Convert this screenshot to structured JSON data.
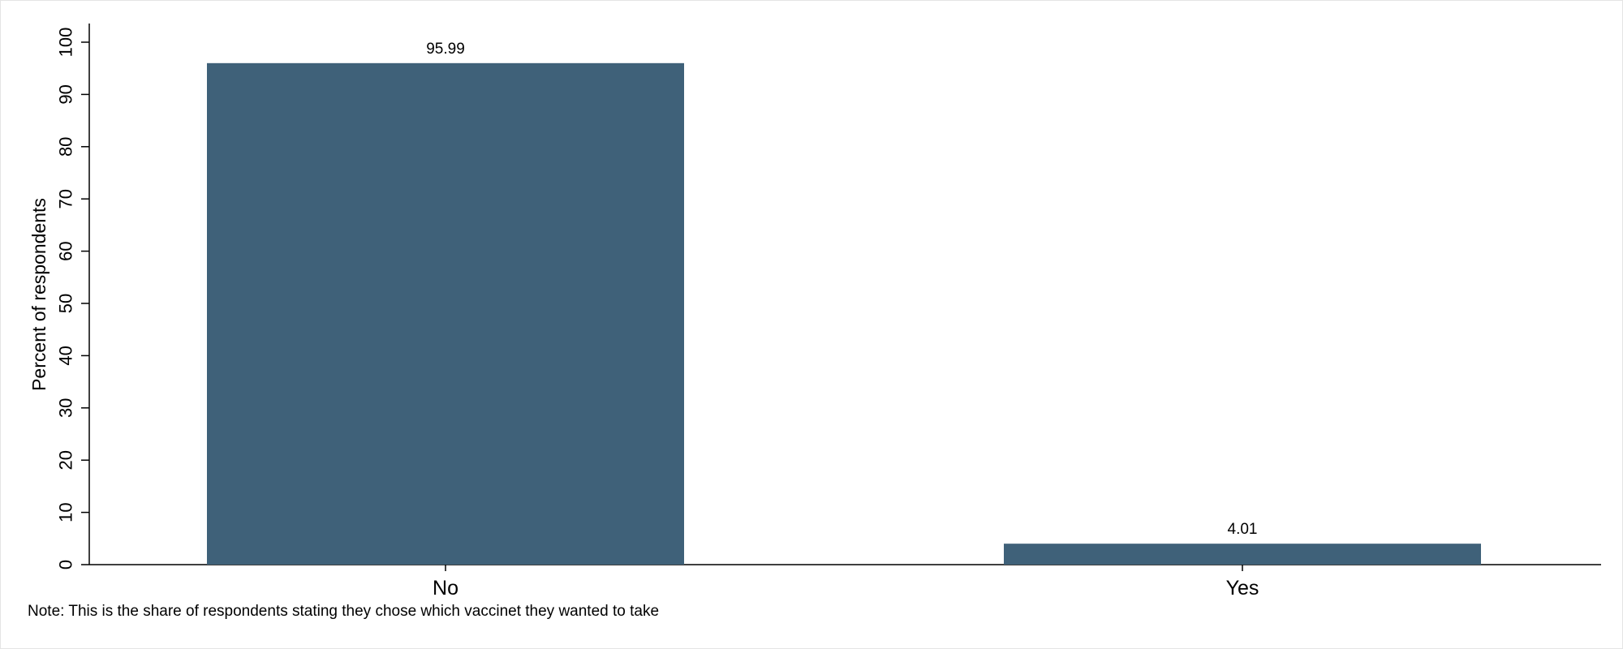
{
  "chart_data": {
    "type": "bar",
    "categories": [
      "No",
      "Yes"
    ],
    "values": [
      95.99,
      4.01
    ],
    "data_labels": [
      "95.99",
      "4.01"
    ],
    "title": "",
    "xlabel": "",
    "ylabel": "Percent of respondents",
    "ylim": [
      0,
      100
    ],
    "yticks": [
      0,
      10,
      20,
      30,
      40,
      50,
      60,
      70,
      80,
      90,
      100
    ],
    "grid": false,
    "legend": "none",
    "bar_color": "#3f6179"
  },
  "note": "Note: This is the share of respondents stating they chose which vaccinet they wanted to take"
}
